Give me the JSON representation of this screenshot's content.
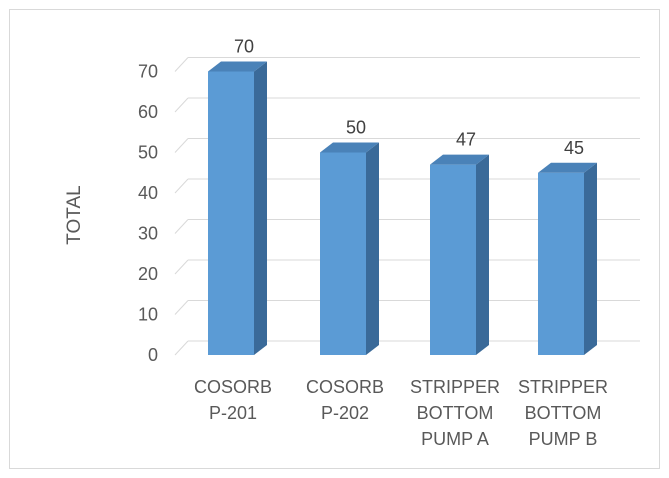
{
  "chart_data": {
    "type": "bar",
    "style": "3d-column",
    "categories": [
      [
        "COSORB",
        "P-201"
      ],
      [
        "COSORB",
        "P-202"
      ],
      [
        "STRIPPER",
        "BOTTOM",
        "PUMP A"
      ],
      [
        "STRIPPER",
        "BOTTOM",
        "PUMP B"
      ]
    ],
    "values": [
      70,
      50,
      47,
      45
    ],
    "data_labels": [
      "70",
      "50",
      "47",
      "45"
    ],
    "title": "",
    "xlabel": "",
    "ylabel": "TOTAL",
    "ylim": [
      0,
      70
    ],
    "yticks": [
      0,
      10,
      20,
      30,
      40,
      50,
      60,
      70
    ],
    "grid": true,
    "legend": "none",
    "colors": {
      "bar_front": "#5b9bd5",
      "bar_side": "#3a6a99",
      "bar_top": "#4a82b8",
      "grid": "#d9d9d9",
      "text": "#595959"
    }
  }
}
